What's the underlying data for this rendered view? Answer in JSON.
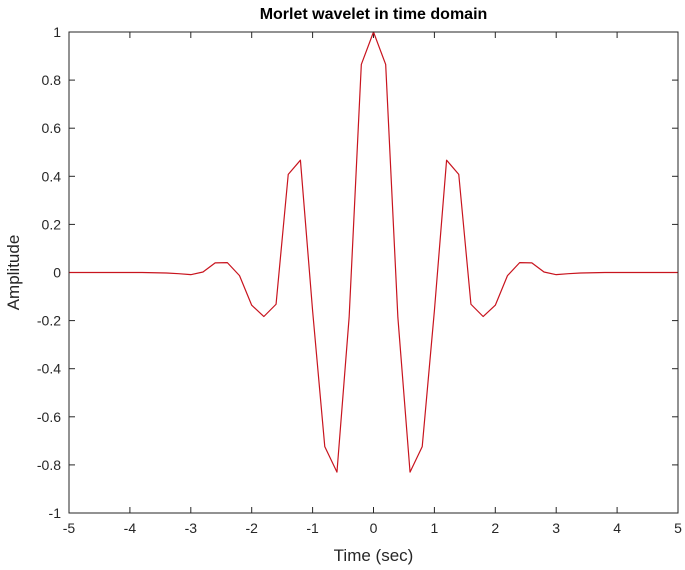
{
  "chart_data": {
    "type": "line",
    "title": "Morlet wavelet in time domain",
    "xlabel": "Time (sec)",
    "ylabel": "Amplitude",
    "xlim": [
      -5,
      5
    ],
    "ylim": [
      -1,
      1
    ],
    "xticks": [
      -5,
      -4,
      -3,
      -2,
      -1,
      0,
      1,
      2,
      3,
      4,
      5
    ],
    "yticks": [
      -1,
      -0.8,
      -0.6,
      -0.4,
      -0.2,
      0,
      0.2,
      0.4,
      0.6,
      0.8,
      1
    ],
    "xtick_labels": [
      "-5",
      "-4",
      "-3",
      "-2",
      "-1",
      "0",
      "1",
      "2",
      "3",
      "4",
      "5"
    ],
    "ytick_labels": [
      "-1",
      "-0.8",
      "-0.6",
      "-0.4",
      "-0.2",
      "0",
      "0.2",
      "0.4",
      "0.6",
      "0.8",
      "1"
    ],
    "grid": false,
    "series": [
      {
        "color": "#c8141e",
        "x": [
          -5.0,
          -4.8,
          -4.6,
          -4.4,
          -4.2,
          -4.0,
          -3.8,
          -3.6,
          -3.4,
          -3.2,
          -3.0,
          -2.8,
          -2.6,
          -2.4,
          -2.2,
          -2.0,
          -1.8,
          -1.6,
          -1.4,
          -1.2,
          -1.0,
          -0.8,
          -0.6,
          -0.4,
          -0.2,
          0.0,
          0.2,
          0.4,
          0.6,
          0.8,
          1.0,
          1.2,
          1.4,
          1.6,
          1.8,
          2.0,
          2.2,
          2.4,
          2.6,
          2.8,
          3.0,
          3.2,
          3.4,
          3.6,
          3.8,
          4.0,
          4.2,
          4.4,
          4.6,
          4.8,
          5.0
        ],
        "values": [
          0.0,
          0.0,
          0.0,
          0.0,
          0.0,
          0.0,
          0.0,
          -0.001,
          -0.002,
          -0.005,
          -0.009,
          0.002,
          0.04,
          0.041,
          -0.013,
          -0.136,
          -0.183,
          -0.132,
          0.408,
          0.467,
          -0.159,
          -0.724,
          -0.83,
          -0.186,
          0.865,
          1.0,
          0.865,
          -0.186,
          -0.83,
          -0.724,
          -0.159,
          0.467,
          0.408,
          -0.132,
          -0.183,
          -0.136,
          -0.013,
          0.041,
          0.04,
          0.002,
          -0.009,
          -0.005,
          -0.002,
          -0.001,
          0.0,
          0.0,
          0.0,
          0.0,
          0.0,
          0.0,
          0.0
        ]
      }
    ]
  }
}
